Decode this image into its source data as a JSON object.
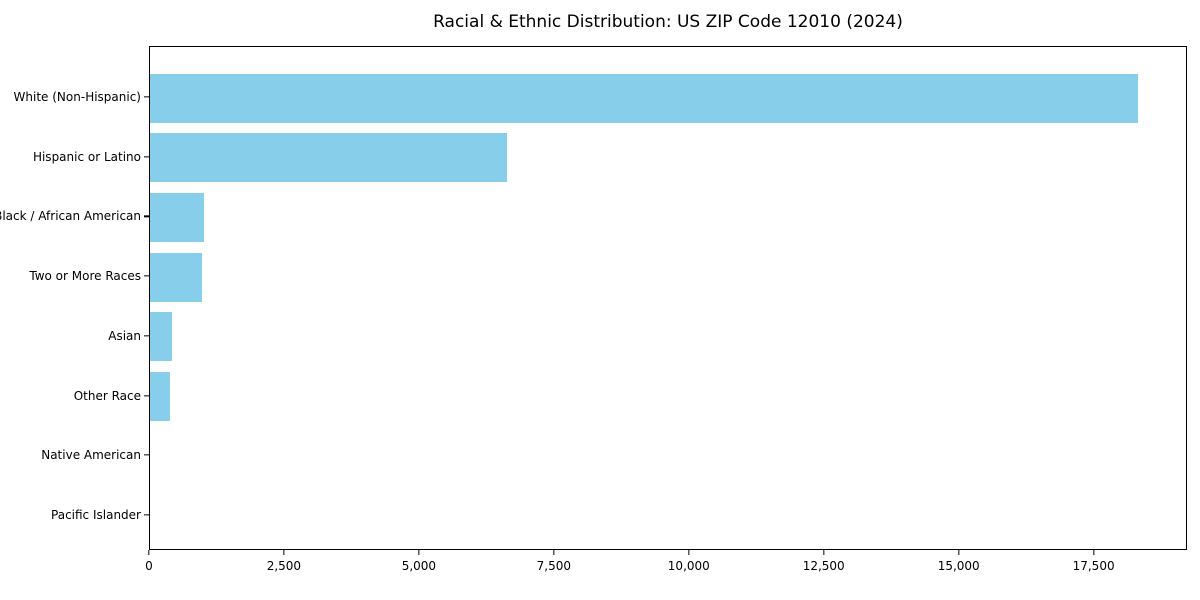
{
  "figure": {
    "background": "#ffffff",
    "frame_color": "#000000",
    "text_color": "#000000"
  },
  "chart_data": {
    "type": "bar",
    "orientation": "horizontal",
    "title": "Racial & Ethnic Distribution: US ZIP Code 12010 (2024)",
    "xlabel": "",
    "ylabel": "",
    "bar_color": "#87CEEB",
    "categories": [
      "White (Non-Hispanic)",
      "Hispanic or Latino",
      "Black / African American",
      "Two or More Races",
      "Asian",
      "Other Race",
      "Native American",
      "Pacific Islander"
    ],
    "values": [
      18300,
      6620,
      1005,
      965,
      410,
      375,
      0,
      0
    ],
    "xlim": [
      0,
      19230
    ],
    "xticks": [
      0,
      2500,
      5000,
      7500,
      10000,
      12500,
      15000,
      17500
    ],
    "xtick_labels": [
      "0",
      "2,500",
      "5,000",
      "7,500",
      "10,000",
      "12,500",
      "15,000",
      "17,500"
    ],
    "grid": false,
    "legend": null
  }
}
